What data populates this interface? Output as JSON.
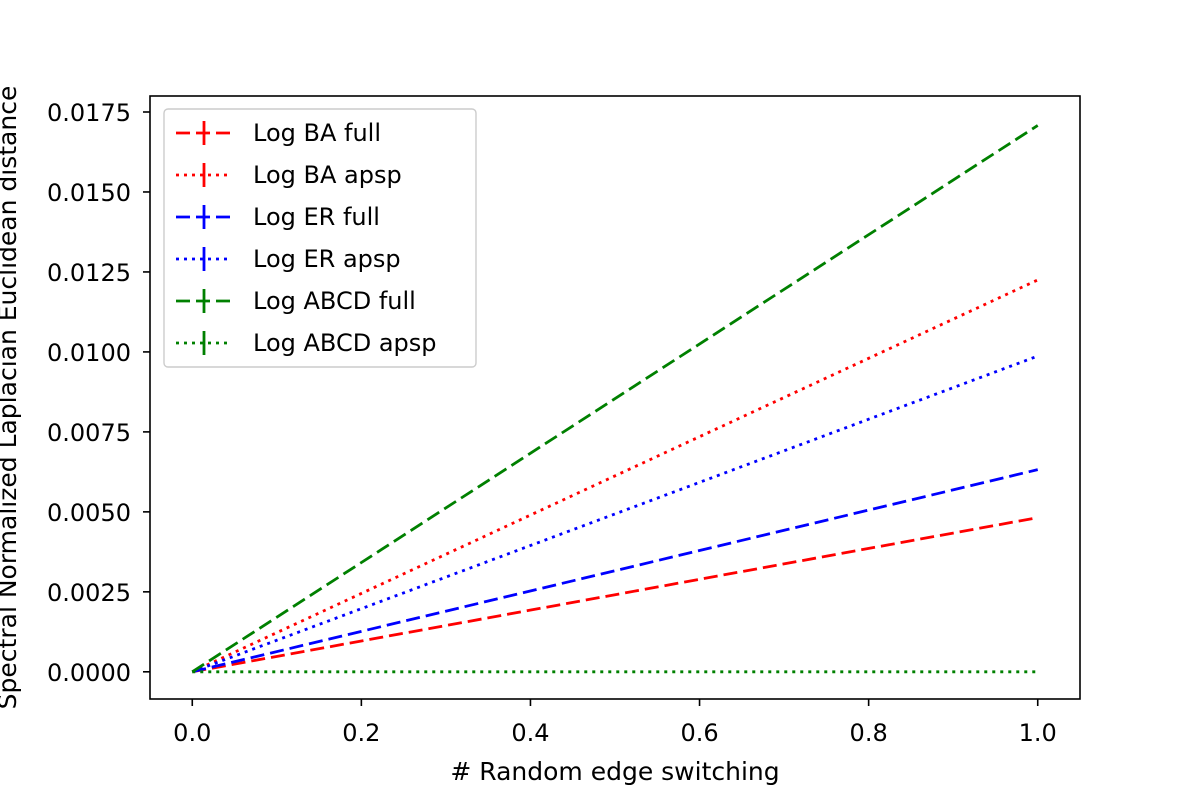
{
  "chart_data": {
    "type": "line",
    "title": "",
    "xlabel": "# Random edge switching",
    "ylabel": "Spectral Normalized Laplacian Euclidean distance",
    "xlim": [
      -0.05,
      1.05
    ],
    "ylim": [
      -0.00085,
      0.018
    ],
    "x_ticks": [
      0.0,
      0.2,
      0.4,
      0.6,
      0.8,
      1.0
    ],
    "x_tick_labels": [
      "0.0",
      "0.2",
      "0.4",
      "0.6",
      "0.8",
      "1.0"
    ],
    "y_ticks": [
      0.0,
      0.0025,
      0.005,
      0.0075,
      0.01,
      0.0125,
      0.015,
      0.0175
    ],
    "y_tick_labels": [
      "0.0000",
      "0.0025",
      "0.0050",
      "0.0075",
      "0.0100",
      "0.0125",
      "0.0150",
      "0.0175"
    ],
    "grid": false,
    "legend_position": "upper-left",
    "series": [
      {
        "name": "Log BA full",
        "color": "#ff0000",
        "linestyle": "dashed",
        "x": [
          0.0,
          1.0
        ],
        "values": [
          0.0,
          0.00482
        ]
      },
      {
        "name": "Log BA apsp",
        "color": "#ff0000",
        "linestyle": "dotted",
        "x": [
          0.0,
          1.0
        ],
        "values": [
          0.0,
          0.01225
        ]
      },
      {
        "name": "Log ER full",
        "color": "#0000ff",
        "linestyle": "dashed",
        "x": [
          0.0,
          1.0
        ],
        "values": [
          0.0,
          0.00632
        ]
      },
      {
        "name": "Log ER apsp",
        "color": "#0000ff",
        "linestyle": "dotted",
        "x": [
          0.0,
          1.0
        ],
        "values": [
          0.0,
          0.00987
        ]
      },
      {
        "name": "Log ABCD full",
        "color": "#008000",
        "linestyle": "dashed",
        "x": [
          0.0,
          1.0
        ],
        "values": [
          0.0,
          0.01708
        ]
      },
      {
        "name": "Log ABCD apsp",
        "color": "#008000",
        "linestyle": "dotted",
        "x": [
          0.0,
          1.0
        ],
        "values": [
          0.0,
          0.0
        ]
      }
    ]
  }
}
